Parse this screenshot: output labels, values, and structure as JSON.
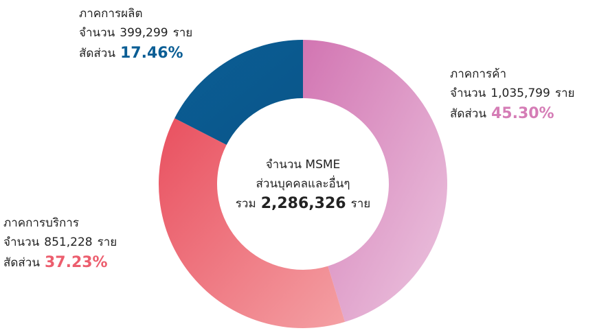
{
  "chart_data": {
    "type": "donut",
    "center_lines": [
      "จำนวน MSME",
      "ส่วนบุคคลและอื่นๆ"
    ],
    "total_prefix": "รวม",
    "total": 2286326,
    "total_label": "2,286,326",
    "count_prefix": "จำนวน",
    "count_suffix": "ราย",
    "share_prefix": "สัดส่วน",
    "categories": [
      "ภาคการค้า",
      "ภาคการบริการ",
      "ภาคการผลิต"
    ],
    "values": [
      45.3,
      37.23,
      17.46
    ],
    "value_labels": [
      "45.30%",
      "37.23%",
      "17.46%"
    ],
    "counts": [
      1035799,
      851228,
      399299
    ],
    "count_labels": [
      "1,035,799",
      "851,228",
      "399,299"
    ],
    "colors": [
      "#d57db6",
      "#ec5e6e",
      "#0b5e95"
    ]
  }
}
